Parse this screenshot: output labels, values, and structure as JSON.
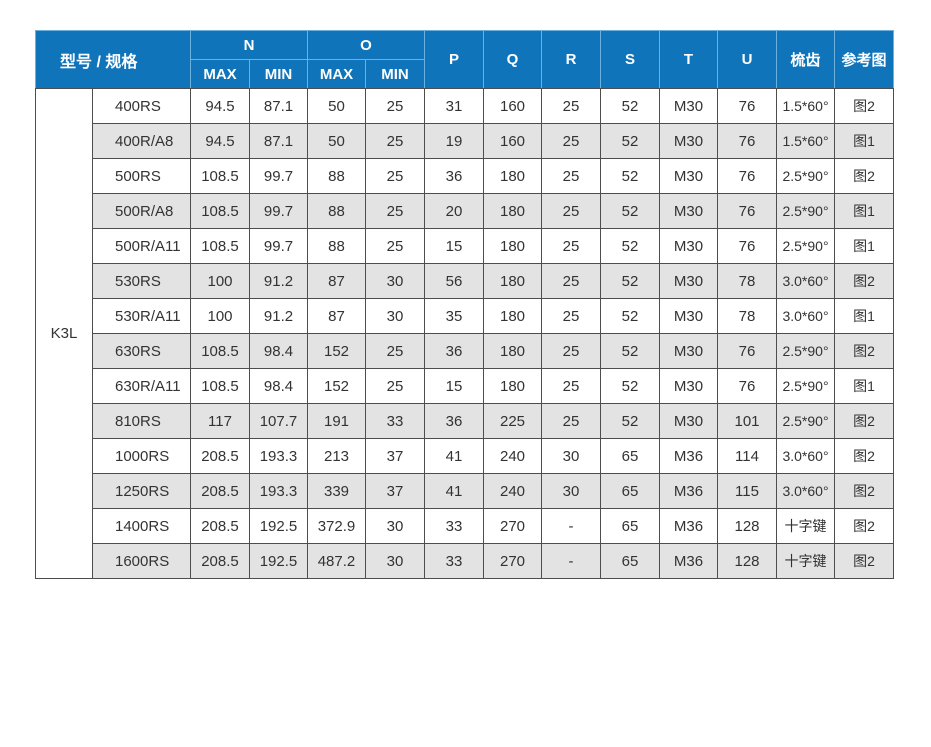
{
  "colors": {
    "header_bg": "#0f74ba",
    "header_divider": "#6ab1de",
    "row_alt_bg": "#e3e3e3",
    "border": "#4d4d4d",
    "text": "#333333",
    "header_text": "#ffffff"
  },
  "table": {
    "group_label": "K3L",
    "header": {
      "model": "型号 / 规格",
      "n": "N",
      "o": "O",
      "max": "MAX",
      "min": "MIN",
      "p": "P",
      "q": "Q",
      "r": "R",
      "s": "S",
      "t": "T",
      "u": "U",
      "comb": "梳齿",
      "ref": "参考图"
    },
    "rows": [
      {
        "model": "400RS",
        "n_max": "94.5",
        "n_min": "87.1",
        "o_max": "50",
        "o_min": "25",
        "p": "31",
        "q": "160",
        "r": "25",
        "s": "52",
        "t": "M30",
        "u": "76",
        "comb": "1.5*60°",
        "ref": "图2"
      },
      {
        "model": "400R/A8",
        "n_max": "94.5",
        "n_min": "87.1",
        "o_max": "50",
        "o_min": "25",
        "p": "19",
        "q": "160",
        "r": "25",
        "s": "52",
        "t": "M30",
        "u": "76",
        "comb": "1.5*60°",
        "ref": "图1"
      },
      {
        "model": "500RS",
        "n_max": "108.5",
        "n_min": "99.7",
        "o_max": "88",
        "o_min": "25",
        "p": "36",
        "q": "180",
        "r": "25",
        "s": "52",
        "t": "M30",
        "u": "76",
        "comb": "2.5*90°",
        "ref": "图2"
      },
      {
        "model": "500R/A8",
        "n_max": "108.5",
        "n_min": "99.7",
        "o_max": "88",
        "o_min": "25",
        "p": "20",
        "q": "180",
        "r": "25",
        "s": "52",
        "t": "M30",
        "u": "76",
        "comb": "2.5*90°",
        "ref": "图1"
      },
      {
        "model": "500R/A11",
        "n_max": "108.5",
        "n_min": "99.7",
        "o_max": "88",
        "o_min": "25",
        "p": "15",
        "q": "180",
        "r": "25",
        "s": "52",
        "t": "M30",
        "u": "76",
        "comb": "2.5*90°",
        "ref": "图1"
      },
      {
        "model": "530RS",
        "n_max": "100",
        "n_min": "91.2",
        "o_max": "87",
        "o_min": "30",
        "p": "56",
        "q": "180",
        "r": "25",
        "s": "52",
        "t": "M30",
        "u": "78",
        "comb": "3.0*60°",
        "ref": "图2"
      },
      {
        "model": "530R/A11",
        "n_max": "100",
        "n_min": "91.2",
        "o_max": "87",
        "o_min": "30",
        "p": "35",
        "q": "180",
        "r": "25",
        "s": "52",
        "t": "M30",
        "u": "78",
        "comb": "3.0*60°",
        "ref": "图1"
      },
      {
        "model": "630RS",
        "n_max": "108.5",
        "n_min": "98.4",
        "o_max": "152",
        "o_min": "25",
        "p": "36",
        "q": "180",
        "r": "25",
        "s": "52",
        "t": "M30",
        "u": "76",
        "comb": "2.5*90°",
        "ref": "图2"
      },
      {
        "model": "630R/A11",
        "n_max": "108.5",
        "n_min": "98.4",
        "o_max": "152",
        "o_min": "25",
        "p": "15",
        "q": "180",
        "r": "25",
        "s": "52",
        "t": "M30",
        "u": "76",
        "comb": "2.5*90°",
        "ref": "图1"
      },
      {
        "model": "810RS",
        "n_max": "117",
        "n_min": "107.7",
        "o_max": "191",
        "o_min": "33",
        "p": "36",
        "q": "225",
        "r": "25",
        "s": "52",
        "t": "M30",
        "u": "101",
        "comb": "2.5*90°",
        "ref": "图2"
      },
      {
        "model": "1000RS",
        "n_max": "208.5",
        "n_min": "193.3",
        "o_max": "213",
        "o_min": "37",
        "p": "41",
        "q": "240",
        "r": "30",
        "s": "65",
        "t": "M36",
        "u": "114",
        "comb": "3.0*60°",
        "ref": "图2"
      },
      {
        "model": "1250RS",
        "n_max": "208.5",
        "n_min": "193.3",
        "o_max": "339",
        "o_min": "37",
        "p": "41",
        "q": "240",
        "r": "30",
        "s": "65",
        "t": "M36",
        "u": "115",
        "comb": "3.0*60°",
        "ref": "图2"
      },
      {
        "model": "1400RS",
        "n_max": "208.5",
        "n_min": "192.5",
        "o_max": "372.9",
        "o_min": "30",
        "p": "33",
        "q": "270",
        "r": "-",
        "s": "65",
        "t": "M36",
        "u": "128",
        "comb": "十字键",
        "ref": "图2"
      },
      {
        "model": "1600RS",
        "n_max": "208.5",
        "n_min": "192.5",
        "o_max": "487.2",
        "o_min": "30",
        "p": "33",
        "q": "270",
        "r": "-",
        "s": "65",
        "t": "M36",
        "u": "128",
        "comb": "十字键",
        "ref": "图2"
      }
    ]
  }
}
